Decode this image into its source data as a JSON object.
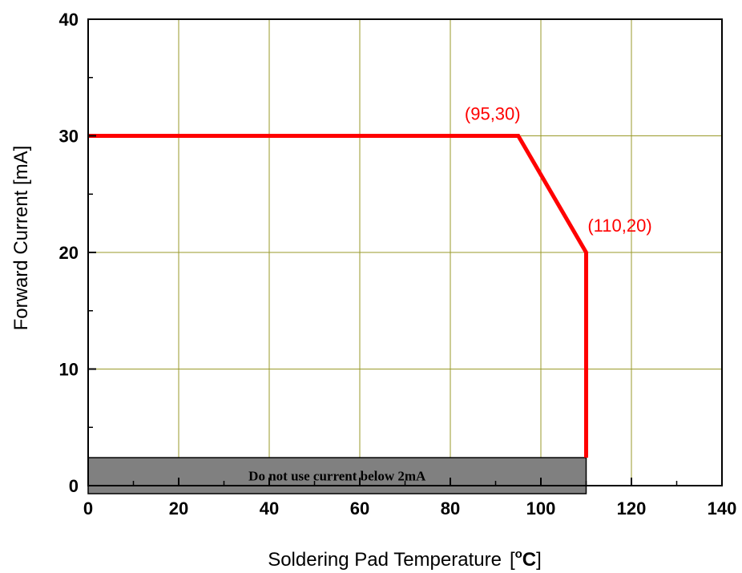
{
  "chart_data": {
    "type": "line",
    "xlabel": "Soldering Pad Temperature",
    "xunit_open": "[",
    "xunit_deg": "o",
    "xunit_c": "C",
    "xunit_close": "]",
    "ylabel": "Forward Current [mA]",
    "xlim": [
      0,
      140
    ],
    "ylim": [
      0,
      40
    ],
    "x_ticks": [
      0,
      20,
      40,
      60,
      80,
      100,
      120,
      140
    ],
    "y_ticks": [
      0,
      10,
      20,
      30,
      40
    ],
    "grid": true,
    "grid_color": "#9a9a2a",
    "series": [
      {
        "color": "#ff0000",
        "points": [
          [
            0,
            30
          ],
          [
            95,
            30
          ],
          [
            110,
            20
          ],
          [
            110,
            2.4
          ]
        ]
      }
    ],
    "annotations": [
      {
        "text": "(95,30)",
        "x": 95,
        "y": 30,
        "color": "#ff0000"
      },
      {
        "text": "(110,20)",
        "x": 110,
        "y": 20,
        "color": "#ff0000"
      }
    ],
    "band": {
      "label": "Do not use current below 2mA",
      "x_from": 0,
      "x_to": 110,
      "y_from": 0,
      "y_to": 2.4,
      "fill": "#808080"
    }
  }
}
